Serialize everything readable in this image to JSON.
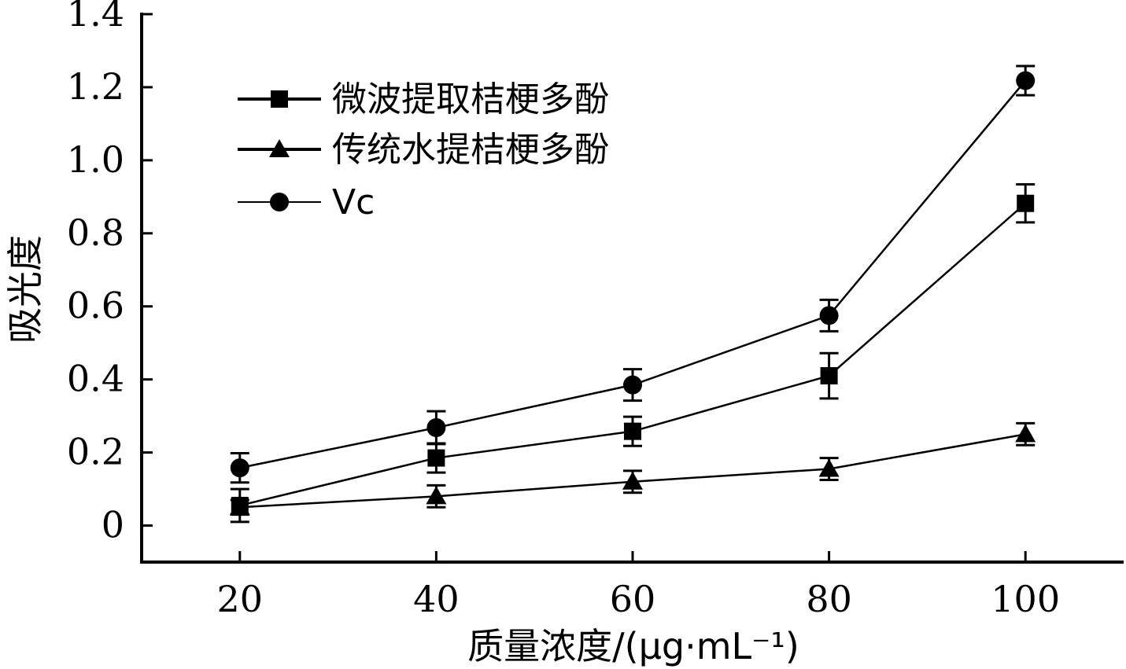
{
  "chart_data": {
    "type": "line",
    "title": "",
    "xlabel": "质量浓度/(μg·mL⁻¹)",
    "ylabel": "吸光度",
    "x": [
      20,
      40,
      60,
      80,
      100
    ],
    "xlim": [
      10,
      110
    ],
    "ylim": [
      -0.1,
      1.4
    ],
    "x_ticks": [
      "20",
      "40",
      "60",
      "80",
      "100"
    ],
    "y_ticks": [
      "0",
      "0.2",
      "0.4",
      "0.6",
      "0.8",
      "1.0",
      "1.2",
      "1.4"
    ],
    "y_tick_values": [
      0,
      0.2,
      0.4,
      0.6,
      0.8,
      1.0,
      1.2,
      1.4
    ],
    "grid": false,
    "legend_position": "top-left",
    "series": [
      {
        "name": "微波提取桔梗多酚",
        "marker": "square",
        "color": "#000000",
        "values": [
          0.055,
          0.185,
          0.258,
          0.41,
          0.882
        ],
        "errors": [
          0.045,
          0.04,
          0.04,
          0.062,
          0.052
        ]
      },
      {
        "name": "传统水提桔梗多酚",
        "marker": "triangle",
        "color": "#000000",
        "values": [
          0.05,
          0.08,
          0.12,
          0.155,
          0.25
        ],
        "errors": [
          0.02,
          0.03,
          0.03,
          0.03,
          0.03
        ]
      },
      {
        "name": "Vc",
        "marker": "circle",
        "color": "#000000",
        "values": [
          0.158,
          0.268,
          0.385,
          0.575,
          1.218
        ],
        "errors": [
          0.04,
          0.045,
          0.043,
          0.043,
          0.04
        ]
      }
    ]
  }
}
